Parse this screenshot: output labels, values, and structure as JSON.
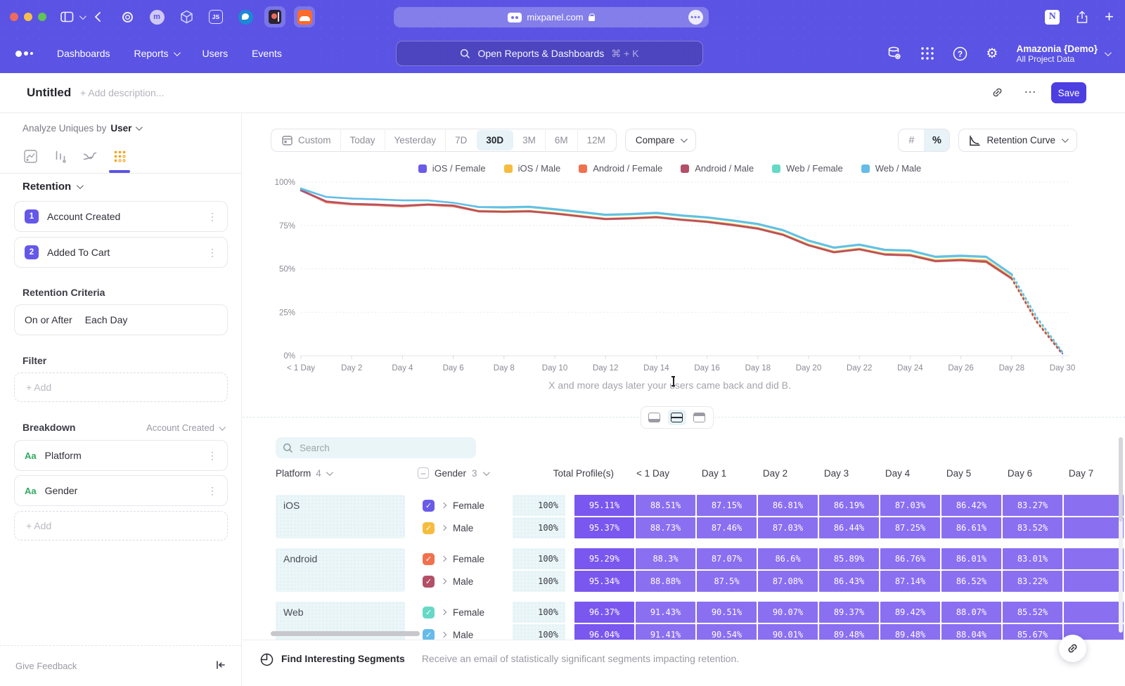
{
  "browser": {
    "url": "mixpanel.com",
    "js_badge": "JS",
    "m_badge": "m",
    "more_label": "...",
    "tab_icons": [
      "target-icon",
      "avatar-m-icon",
      "cube-icon",
      "js-icon",
      "bird-icon",
      "reader-icon",
      "soundcloud-icon"
    ]
  },
  "nav": {
    "items": [
      "Dashboards",
      "Reports",
      "Users",
      "Events"
    ],
    "search_placeholder": "Open Reports & Dashboards",
    "search_shortcut": "⌘ + K",
    "project_name": "Amazonia {Demo}",
    "project_scope": "All Project Data"
  },
  "header": {
    "title": "Untitled",
    "description_placeholder": "+ Add description...",
    "save_label": "Save",
    "more_label": "…"
  },
  "sidebar": {
    "analyze_label": "Analyze Uniques by",
    "analyze_value": "User",
    "retention_label": "Retention",
    "steps": [
      {
        "num": "1",
        "label": "Account Created"
      },
      {
        "num": "2",
        "label": "Added To Cart"
      }
    ],
    "criteria_label": "Retention Criteria",
    "criteria_condition": "On or After",
    "criteria_interval": "Each Day",
    "filter_label": "Filter",
    "add_label": "+ Add",
    "breakdown_label": "Breakdown",
    "breakdown_event": "Account Created",
    "breakdowns": [
      {
        "badge": "Aa",
        "label": "Platform"
      },
      {
        "badge": "Aa",
        "label": "Gender"
      }
    ],
    "give_feedback": "Give Feedback"
  },
  "toolbar": {
    "ranges": [
      "Custom",
      "Today",
      "Yesterday",
      "7D",
      "30D",
      "3M",
      "6M",
      "12M"
    ],
    "active_range": "30D",
    "compare_label": "Compare",
    "count_label": "#",
    "percent_label": "%",
    "chart_type_label": "Retention Curve"
  },
  "chart_data": {
    "type": "line",
    "x_unit": "day",
    "x_tick_labels": [
      "< 1 Day",
      "Day 2",
      "Day 4",
      "Day 6",
      "Day 8",
      "Day 10",
      "Day 12",
      "Day 14",
      "Day 16",
      "Day 18",
      "Day 20",
      "Day 22",
      "Day 24",
      "Day 26",
      "Day 28",
      "Day 30"
    ],
    "y_tick_labels": [
      "100%",
      "75%",
      "50%",
      "25%",
      "0%"
    ],
    "ylim": [
      0,
      100
    ],
    "grid": "horizontal-dotted",
    "legend_position": "top",
    "dashed_from_index": 28,
    "caption": "X and more days later your users came back and did B.",
    "series": [
      {
        "name": "iOS / Female",
        "color": "#6a5be8",
        "values": [
          95.1,
          88.5,
          87.2,
          86.8,
          86.2,
          87.0,
          86.4,
          83.3,
          83.0,
          83.3,
          82.0,
          80.4,
          78.8,
          79.2,
          79.9,
          78.4,
          77.3,
          75.5,
          73.4,
          69.8,
          63.8,
          59.8,
          61.5,
          58.5,
          58.1,
          54.8,
          55.4,
          54.6,
          44.8,
          19.5,
          1.2
        ]
      },
      {
        "name": "iOS / Male",
        "color": "#f6bc3f",
        "values": [
          95.4,
          88.7,
          87.5,
          87.0,
          86.4,
          87.3,
          86.6,
          83.5,
          83.2,
          83.5,
          82.2,
          80.6,
          79.0,
          79.4,
          80.1,
          78.6,
          77.5,
          75.7,
          73.6,
          70.0,
          64.0,
          60.0,
          61.7,
          58.7,
          58.3,
          55.0,
          55.6,
          54.9,
          45.0,
          19.8,
          1.4
        ]
      },
      {
        "name": "Android / Female",
        "color": "#f0714e",
        "values": [
          95.3,
          88.3,
          87.1,
          86.6,
          85.9,
          86.8,
          86.0,
          83.0,
          82.7,
          83.0,
          81.7,
          80.1,
          78.5,
          78.9,
          79.6,
          78.1,
          76.9,
          75.1,
          73.0,
          69.4,
          63.4,
          59.4,
          61.1,
          58.1,
          57.6,
          54.2,
          54.8,
          53.8,
          44.2,
          19.0,
          0.8
        ]
      },
      {
        "name": "Android / Male",
        "color": "#b34f67",
        "values": [
          95.3,
          88.9,
          87.5,
          87.1,
          86.4,
          87.1,
          86.5,
          83.2,
          82.9,
          83.2,
          81.9,
          80.3,
          78.7,
          79.1,
          79.8,
          78.3,
          77.1,
          75.3,
          73.2,
          69.6,
          63.6,
          59.6,
          61.3,
          58.3,
          57.8,
          54.5,
          55.1,
          54.2,
          44.5,
          19.3,
          1.0
        ]
      },
      {
        "name": "Web / Female",
        "color": "#66d9c6",
        "values": [
          96.4,
          91.4,
          90.5,
          90.1,
          89.4,
          89.4,
          88.1,
          85.5,
          85.2,
          85.5,
          84.1,
          82.5,
          80.9,
          81.3,
          82.0,
          80.5,
          79.4,
          77.6,
          75.6,
          72.0,
          66.0,
          62.0,
          63.7,
          60.7,
          60.3,
          56.7,
          57.3,
          56.7,
          46.5,
          21.5,
          1.8
        ]
      },
      {
        "name": "Web / Male",
        "color": "#66bbe8",
        "values": [
          96.0,
          91.4,
          90.5,
          90.0,
          89.5,
          89.5,
          88.0,
          85.7,
          85.6,
          85.9,
          84.5,
          82.9,
          81.3,
          81.7,
          82.4,
          80.9,
          79.8,
          78.0,
          76.0,
          72.4,
          66.4,
          62.4,
          64.1,
          61.1,
          60.7,
          57.1,
          57.7,
          57.1,
          47.0,
          22.0,
          2.2
        ]
      }
    ]
  },
  "table": {
    "search_placeholder": "Search",
    "platform_header": "Platform",
    "platform_count": "4",
    "gender_header": "Gender",
    "gender_count": "3",
    "total_header": "Total Profile(s)",
    "day_headers": [
      "< 1 Day",
      "Day 1",
      "Day 2",
      "Day 3",
      "Day 4",
      "Day 5",
      "Day 6",
      "Day 7"
    ],
    "groups": [
      {
        "platform": "iOS",
        "rows": [
          {
            "gender": "Female",
            "color": "#6a5be8",
            "total": "100%",
            "values": [
              "95.11%",
              "88.51%",
              "87.15%",
              "86.81%",
              "86.19%",
              "87.03%",
              "86.42%",
              "83.27%"
            ]
          },
          {
            "gender": "Male",
            "color": "#f6bc3f",
            "total": "100%",
            "values": [
              "95.37%",
              "88.73%",
              "87.46%",
              "87.03%",
              "86.44%",
              "87.25%",
              "86.61%",
              "83.52%"
            ]
          }
        ]
      },
      {
        "platform": "Android",
        "rows": [
          {
            "gender": "Female",
            "color": "#f0714e",
            "total": "100%",
            "values": [
              "95.29%",
              "88.3%",
              "87.07%",
              "86.6%",
              "85.89%",
              "86.76%",
              "86.01%",
              "83.01%"
            ]
          },
          {
            "gender": "Male",
            "color": "#b34f67",
            "total": "100%",
            "values": [
              "95.34%",
              "88.88%",
              "87.5%",
              "87.08%",
              "86.43%",
              "87.14%",
              "86.52%",
              "83.22%"
            ]
          }
        ]
      },
      {
        "platform": "Web",
        "rows": [
          {
            "gender": "Female",
            "color": "#66d9c6",
            "total": "100%",
            "values": [
              "96.37%",
              "91.43%",
              "90.51%",
              "90.07%",
              "89.37%",
              "89.42%",
              "88.07%",
              "85.52%"
            ]
          },
          {
            "gender": "Male",
            "color": "#66bbe8",
            "total": "100%",
            "values": [
              "96.04%",
              "91.41%",
              "90.54%",
              "90.01%",
              "89.48%",
              "89.48%",
              "88.04%",
              "85.67%"
            ]
          }
        ]
      }
    ]
  },
  "footer": {
    "title": "Find Interesting Segments",
    "subtitle": "Receive an email of statistically significant segments impacting retention."
  }
}
